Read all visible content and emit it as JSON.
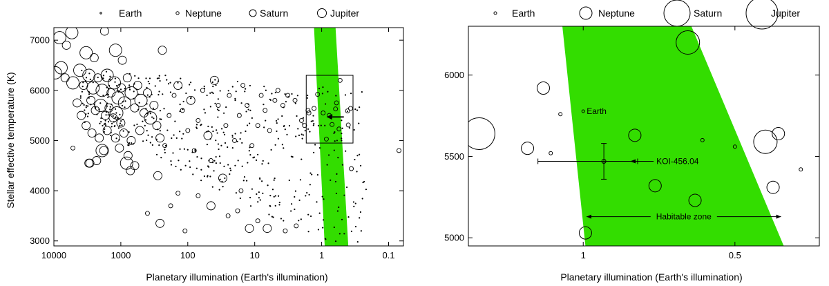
{
  "chart_data": [
    {
      "type": "scatter",
      "xlabel": "Planetary illumination (Earth's illumination)",
      "ylabel": "Stellar effective temperature (K)",
      "x_scale": "log-reversed",
      "xlim": [
        10000,
        0.06
      ],
      "ylim": [
        2900,
        7250
      ],
      "x_ticks": [
        10000,
        1000,
        100,
        10,
        1,
        0.1
      ],
      "x_tick_labels": [
        "10000",
        "1000",
        "100",
        "10",
        "1",
        "0.1"
      ],
      "y_ticks": [
        3000,
        4000,
        5000,
        6000,
        7000
      ],
      "y_tick_labels": [
        "3000",
        "4000",
        "5000",
        "6000",
        "7000"
      ],
      "legend": {
        "placement": "top",
        "entries": [
          "Earth",
          "Neptune",
          "Saturn",
          "Jupiter"
        ],
        "sizes": [
          "earth",
          "neptune",
          "saturn",
          "jupiter"
        ]
      },
      "habitable_zone": {
        "color": "#33dd00",
        "top_edge": [
          1.3,
          0.62
        ],
        "bottom_edge": [
          0.9,
          0.4
        ],
        "y_range": [
          2900,
          7250
        ]
      },
      "zoom_box": {
        "x": [
          1.7,
          0.34
        ],
        "y": [
          4950,
          6300
        ]
      },
      "marker": {
        "x": 0.75,
        "y": 5470,
        "label": ""
      },
      "points": [
        {
          "x": 8200,
          "y": 7050,
          "s": "jupiter"
        },
        {
          "x": 6500,
          "y": 6900,
          "s": "saturn"
        },
        {
          "x": 5400,
          "y": 7150,
          "s": "jupiter"
        },
        {
          "x": 1750,
          "y": 7180,
          "s": "saturn"
        },
        {
          "x": 3300,
          "y": 6750,
          "s": "jupiter"
        },
        {
          "x": 2500,
          "y": 6650,
          "s": "saturn"
        },
        {
          "x": 1200,
          "y": 6800,
          "s": "jupiter"
        },
        {
          "x": 950,
          "y": 6600,
          "s": "saturn"
        },
        {
          "x": 7800,
          "y": 6450,
          "s": "jupiter"
        },
        {
          "x": 9500,
          "y": 6350,
          "s": "jupiter"
        },
        {
          "x": 6800,
          "y": 6250,
          "s": "saturn"
        },
        {
          "x": 5200,
          "y": 6150,
          "s": "jupiter"
        },
        {
          "x": 4100,
          "y": 6400,
          "s": "jupiter"
        },
        {
          "x": 3600,
          "y": 6100,
          "s": "saturn"
        },
        {
          "x": 3000,
          "y": 6300,
          "s": "jupiter"
        },
        {
          "x": 2600,
          "y": 6050,
          "s": "jupiter"
        },
        {
          "x": 2200,
          "y": 6250,
          "s": "saturn"
        },
        {
          "x": 1900,
          "y": 6000,
          "s": "jupiter"
        },
        {
          "x": 1600,
          "y": 6300,
          "s": "jupiter"
        },
        {
          "x": 1400,
          "y": 5950,
          "s": "saturn"
        },
        {
          "x": 1250,
          "y": 6150,
          "s": "jupiter"
        },
        {
          "x": 1100,
          "y": 5850,
          "s": "jupiter"
        },
        {
          "x": 980,
          "y": 6050,
          "s": "saturn"
        },
        {
          "x": 880,
          "y": 5750,
          "s": "jupiter"
        },
        {
          "x": 800,
          "y": 6250,
          "s": "saturn"
        },
        {
          "x": 700,
          "y": 5950,
          "s": "jupiter"
        },
        {
          "x": 620,
          "y": 5650,
          "s": "saturn"
        },
        {
          "x": 560,
          "y": 6100,
          "s": "saturn"
        },
        {
          "x": 500,
          "y": 5800,
          "s": "jupiter"
        },
        {
          "x": 450,
          "y": 5550,
          "s": "saturn"
        },
        {
          "x": 400,
          "y": 5950,
          "s": "saturn"
        },
        {
          "x": 360,
          "y": 5450,
          "s": "jupiter"
        },
        {
          "x": 320,
          "y": 5700,
          "s": "saturn"
        },
        {
          "x": 290,
          "y": 5300,
          "s": "saturn"
        },
        {
          "x": 2800,
          "y": 5800,
          "s": "saturn"
        },
        {
          "x": 2400,
          "y": 5600,
          "s": "saturn"
        },
        {
          "x": 2000,
          "y": 5700,
          "s": "jupiter"
        },
        {
          "x": 1700,
          "y": 5500,
          "s": "saturn"
        },
        {
          "x": 1500,
          "y": 5650,
          "s": "saturn"
        },
        {
          "x": 1300,
          "y": 5450,
          "s": "saturn"
        },
        {
          "x": 1150,
          "y": 5550,
          "s": "jupiter"
        },
        {
          "x": 1000,
          "y": 5350,
          "s": "saturn"
        },
        {
          "x": 4500,
          "y": 5750,
          "s": "saturn"
        },
        {
          "x": 3900,
          "y": 5500,
          "s": "saturn"
        },
        {
          "x": 3300,
          "y": 5300,
          "s": "saturn"
        },
        {
          "x": 2700,
          "y": 5150,
          "s": "saturn"
        },
        {
          "x": 2100,
          "y": 5050,
          "s": "saturn"
        },
        {
          "x": 1600,
          "y": 5200,
          "s": "saturn"
        },
        {
          "x": 1200,
          "y": 5050,
          "s": "saturn"
        },
        {
          "x": 900,
          "y": 5150,
          "s": "saturn"
        },
        {
          "x": 700,
          "y": 5000,
          "s": "saturn"
        },
        {
          "x": 520,
          "y": 5200,
          "s": "saturn"
        },
        {
          "x": 1050,
          "y": 4850,
          "s": "saturn"
        },
        {
          "x": 780,
          "y": 4700,
          "s": "saturn"
        },
        {
          "x": 1800,
          "y": 4800,
          "s": "saturn"
        },
        {
          "x": 2300,
          "y": 4600,
          "s": "saturn"
        },
        {
          "x": 620,
          "y": 4500,
          "s": "saturn"
        },
        {
          "x": 720,
          "y": 4400,
          "s": "saturn"
        },
        {
          "x": 820,
          "y": 4550,
          "s": "jupiter"
        },
        {
          "x": 1900,
          "y": 4800,
          "s": "jupiter"
        },
        {
          "x": 2900,
          "y": 4550,
          "s": "saturn"
        },
        {
          "x": 280,
          "y": 4300,
          "s": "saturn"
        },
        {
          "x": 240,
          "y": 6800,
          "s": "saturn"
        },
        {
          "x": 260,
          "y": 5050,
          "s": "saturn"
        },
        {
          "x": 220,
          "y": 4900,
          "s": "neptune"
        },
        {
          "x": 190,
          "y": 5500,
          "s": "neptune"
        },
        {
          "x": 160,
          "y": 5900,
          "s": "neptune"
        },
        {
          "x": 140,
          "y": 6100,
          "s": "saturn"
        },
        {
          "x": 120,
          "y": 5600,
          "s": "neptune"
        },
        {
          "x": 100,
          "y": 5200,
          "s": "neptune"
        },
        {
          "x": 90,
          "y": 5800,
          "s": "saturn"
        },
        {
          "x": 80,
          "y": 4800,
          "s": "neptune"
        },
        {
          "x": 70,
          "y": 5400,
          "s": "neptune"
        },
        {
          "x": 60,
          "y": 6000,
          "s": "neptune"
        },
        {
          "x": 50,
          "y": 5100,
          "s": "saturn"
        },
        {
          "x": 45,
          "y": 4600,
          "s": "neptune"
        },
        {
          "x": 40,
          "y": 6200,
          "s": "saturn"
        },
        {
          "x": 35,
          "y": 5700,
          "s": "neptune"
        },
        {
          "x": 30,
          "y": 4250,
          "s": "saturn"
        },
        {
          "x": 27,
          "y": 5300,
          "s": "neptune"
        },
        {
          "x": 24,
          "y": 5900,
          "s": "neptune"
        },
        {
          "x": 20,
          "y": 5000,
          "s": "neptune"
        },
        {
          "x": 17,
          "y": 5500,
          "s": "neptune"
        },
        {
          "x": 15,
          "y": 6100,
          "s": "neptune"
        },
        {
          "x": 13,
          "y": 5700,
          "s": "neptune"
        },
        {
          "x": 11,
          "y": 4900,
          "s": "neptune"
        },
        {
          "x": 9,
          "y": 5300,
          "s": "neptune"
        },
        {
          "x": 8,
          "y": 5900,
          "s": "neptune"
        },
        {
          "x": 7,
          "y": 5600,
          "s": "neptune"
        },
        {
          "x": 6,
          "y": 5200,
          "s": "neptune"
        },
        {
          "x": 5,
          "y": 5800,
          "s": "neptune"
        },
        {
          "x": 4.5,
          "y": 6000,
          "s": "neptune"
        },
        {
          "x": 3.8,
          "y": 5700,
          "s": "neptune"
        },
        {
          "x": 3.2,
          "y": 5900,
          "s": "neptune"
        },
        {
          "x": 2.5,
          "y": 5800,
          "s": "neptune"
        },
        {
          "x": 2.0,
          "y": 5400,
          "s": "neptune"
        },
        {
          "x": 1.6,
          "y": 5600,
          "s": "neptune"
        },
        {
          "x": 1.8,
          "y": 5300,
          "s": "neptune"
        },
        {
          "x": 12,
          "y": 3250,
          "s": "saturn"
        },
        {
          "x": 6.5,
          "y": 3250,
          "s": "saturn"
        },
        {
          "x": 180,
          "y": 3700,
          "s": "neptune"
        },
        {
          "x": 260,
          "y": 3350,
          "s": "saturn"
        },
        {
          "x": 400,
          "y": 3550,
          "s": "neptune"
        },
        {
          "x": 140,
          "y": 3950,
          "s": "neptune"
        },
        {
          "x": 110,
          "y": 3200,
          "s": "neptune"
        },
        {
          "x": 70,
          "y": 3900,
          "s": "neptune"
        },
        {
          "x": 45,
          "y": 3700,
          "s": "saturn"
        },
        {
          "x": 25,
          "y": 3500,
          "s": "neptune"
        },
        {
          "x": 18,
          "y": 3600,
          "s": "neptune"
        },
        {
          "x": 16,
          "y": 4000,
          "s": "neptune"
        },
        {
          "x": 9,
          "y": 3400,
          "s": "neptune"
        },
        {
          "x": 3.5,
          "y": 3200,
          "s": "neptune"
        },
        {
          "x": 2.4,
          "y": 3300,
          "s": "neptune"
        },
        {
          "x": 3000,
          "y": 4550,
          "s": "saturn"
        },
        {
          "x": 5200,
          "y": 4850,
          "s": "neptune"
        },
        {
          "x": 0.07,
          "y": 4800,
          "s": "neptune"
        },
        {
          "x": 0.53,
          "y": 6200,
          "s": "neptune"
        },
        {
          "x": 0.6,
          "y": 5750,
          "s": "neptune"
        },
        {
          "x": 0.77,
          "y": 5500,
          "s": "neptune"
        },
        {
          "x": 0.95,
          "y": 5550,
          "s": "neptune"
        },
        {
          "x": 0.62,
          "y": 5630,
          "s": "neptune"
        },
        {
          "x": 0.41,
          "y": 5590,
          "s": "neptune"
        },
        {
          "x": 0.37,
          "y": 5640,
          "s": "neptune"
        },
        {
          "x": 0.7,
          "y": 5320,
          "s": "neptune"
        },
        {
          "x": 0.55,
          "y": 5230,
          "s": "neptune"
        },
        {
          "x": 0.4,
          "y": 5310,
          "s": "neptune"
        },
        {
          "x": 0.85,
          "y": 5030,
          "s": "neptune"
        },
        {
          "x": 0.36,
          "y": 4440,
          "s": "neptune"
        },
        {
          "x": 1.15,
          "y": 5920,
          "s": "neptune"
        },
        {
          "x": 1.3,
          "y": 5640,
          "s": "neptune"
        },
        {
          "x": 1.55,
          "y": 5550,
          "s": "neptune"
        }
      ]
    },
    {
      "type": "scatter",
      "xlabel": "Planetary illumination (Earth's illumination)",
      "ylabel": "",
      "x_scale": "log-reversed",
      "xlim": [
        1.69,
        0.34
      ],
      "ylim": [
        4950,
        6300
      ],
      "x_ticks": [
        1,
        0.5
      ],
      "x_tick_labels": [
        "1",
        "0.5"
      ],
      "y_ticks": [
        5000,
        5500,
        6000
      ],
      "y_tick_labels": [
        "5000",
        "5500",
        "6000"
      ],
      "legend": {
        "placement": "top",
        "entries": [
          "Earth",
          "Neptune",
          "Saturn",
          "Jupiter"
        ],
        "sizes": [
          "earth",
          "neptune",
          "saturn",
          "jupiter"
        ]
      },
      "habitable_zone": {
        "color": "#33dd00",
        "top_edge": [
          1.1,
          0.61
        ],
        "bottom_edge": [
          0.99,
          0.4
        ],
        "y_range": [
          4950,
          6300
        ],
        "label": "Habitable zone",
        "arrow_y": 5130
      },
      "earth": {
        "x": 1.0,
        "y": 5778,
        "label": "Earth"
      },
      "koi": {
        "x": 0.91,
        "y": 5470,
        "xerr": [
          0.78,
          1.23
        ],
        "yerr": [
          5360,
          5580
        ],
        "label": "KOI-456.04"
      },
      "points": [
        {
          "x": 1.61,
          "y": 5640,
          "s": "jupiter"
        },
        {
          "x": 1.2,
          "y": 5920,
          "s": "neptune"
        },
        {
          "x": 1.29,
          "y": 5550,
          "s": "neptune"
        },
        {
          "x": 1.16,
          "y": 5520,
          "s": "earth"
        },
        {
          "x": 1.11,
          "y": 5760,
          "s": "earth"
        },
        {
          "x": 0.99,
          "y": 5030,
          "s": "neptune"
        },
        {
          "x": 0.79,
          "y": 5630,
          "s": "neptune"
        },
        {
          "x": 0.72,
          "y": 5320,
          "s": "neptune"
        },
        {
          "x": 0.62,
          "y": 6200,
          "s": "saturn"
        },
        {
          "x": 0.6,
          "y": 5230,
          "s": "neptune"
        },
        {
          "x": 0.58,
          "y": 5600,
          "s": "earth"
        },
        {
          "x": 0.5,
          "y": 5560,
          "s": "earth"
        },
        {
          "x": 0.435,
          "y": 5590,
          "s": "saturn"
        },
        {
          "x": 0.41,
          "y": 5640,
          "s": "neptune"
        },
        {
          "x": 0.37,
          "y": 5420,
          "s": "earth"
        },
        {
          "x": 0.42,
          "y": 5310,
          "s": "neptune"
        }
      ]
    }
  ]
}
